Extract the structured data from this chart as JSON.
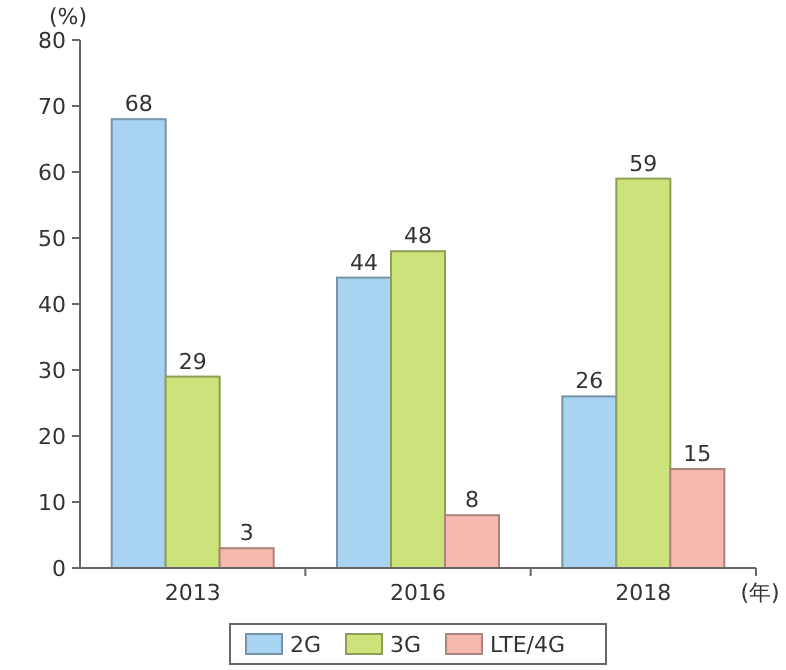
{
  "chart_data": {
    "type": "bar",
    "ylabel": "(%)",
    "xlabel": "(年)",
    "categories": [
      "2013",
      "2016",
      "2018"
    ],
    "series": [
      {
        "name": "2G",
        "color": "#a8d4f2",
        "values": [
          68,
          44,
          26
        ]
      },
      {
        "name": "3G",
        "color": "#cce27a",
        "values": [
          29,
          48,
          59
        ]
      },
      {
        "name": "LTE/4G",
        "color": "#f6b9b0",
        "values": [
          3,
          8,
          15
        ]
      }
    ],
    "ylim": [
      0,
      80
    ],
    "yticks": [
      0,
      10,
      20,
      30,
      40,
      50,
      60,
      70,
      80
    ],
    "data_labels": true,
    "legend": "bottom",
    "grid": false
  }
}
